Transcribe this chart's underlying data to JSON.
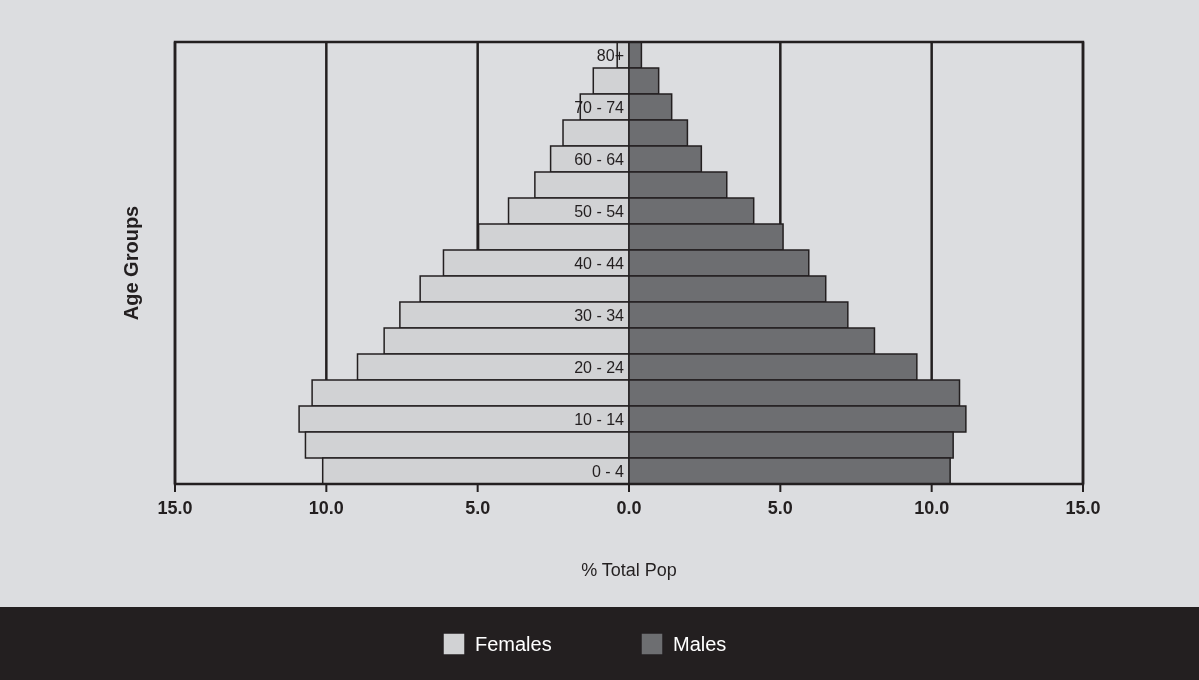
{
  "chart_data": {
    "type": "bar",
    "orientation": "horizontal",
    "xlabel": "% Total Pop",
    "ylabel": "Age Groups",
    "categories": [
      "80+",
      null,
      "70 - 74",
      null,
      "60 - 64",
      null,
      "50 - 54",
      null,
      "40 - 44",
      null,
      "30 - 34",
      null,
      "20 - 24",
      null,
      "10 - 14",
      null,
      "0 - 4"
    ],
    "series": [
      {
        "name": "Females",
        "color": "#d1d2d4",
        "values": [
          -0.39,
          -1.18,
          -1.61,
          -2.18,
          -2.59,
          -3.11,
          -3.98,
          -4.97,
          -6.13,
          -6.9,
          -7.57,
          -8.09,
          -8.97,
          -10.47,
          -10.9,
          -10.69,
          -10.12
        ]
      },
      {
        "name": "Males",
        "color": "#6d6e71",
        "values": [
          0.41,
          0.98,
          1.41,
          1.93,
          2.39,
          3.23,
          4.12,
          5.09,
          5.94,
          6.5,
          7.23,
          8.11,
          9.51,
          10.92,
          11.13,
          10.71,
          10.61
        ]
      }
    ],
    "xlim": [
      -15,
      15
    ],
    "xticks": [
      {
        "value": -15,
        "label": "15.0"
      },
      {
        "value": -10,
        "label": "10.0"
      },
      {
        "value": -5,
        "label": "5.0"
      },
      {
        "value": 0,
        "label": "0.0"
      },
      {
        "value": 5,
        "label": "5.0"
      },
      {
        "value": 10,
        "label": "10.0"
      },
      {
        "value": 15,
        "label": "15.0"
      }
    ],
    "grid": "x",
    "legend": "bottom",
    "stacked": true
  }
}
